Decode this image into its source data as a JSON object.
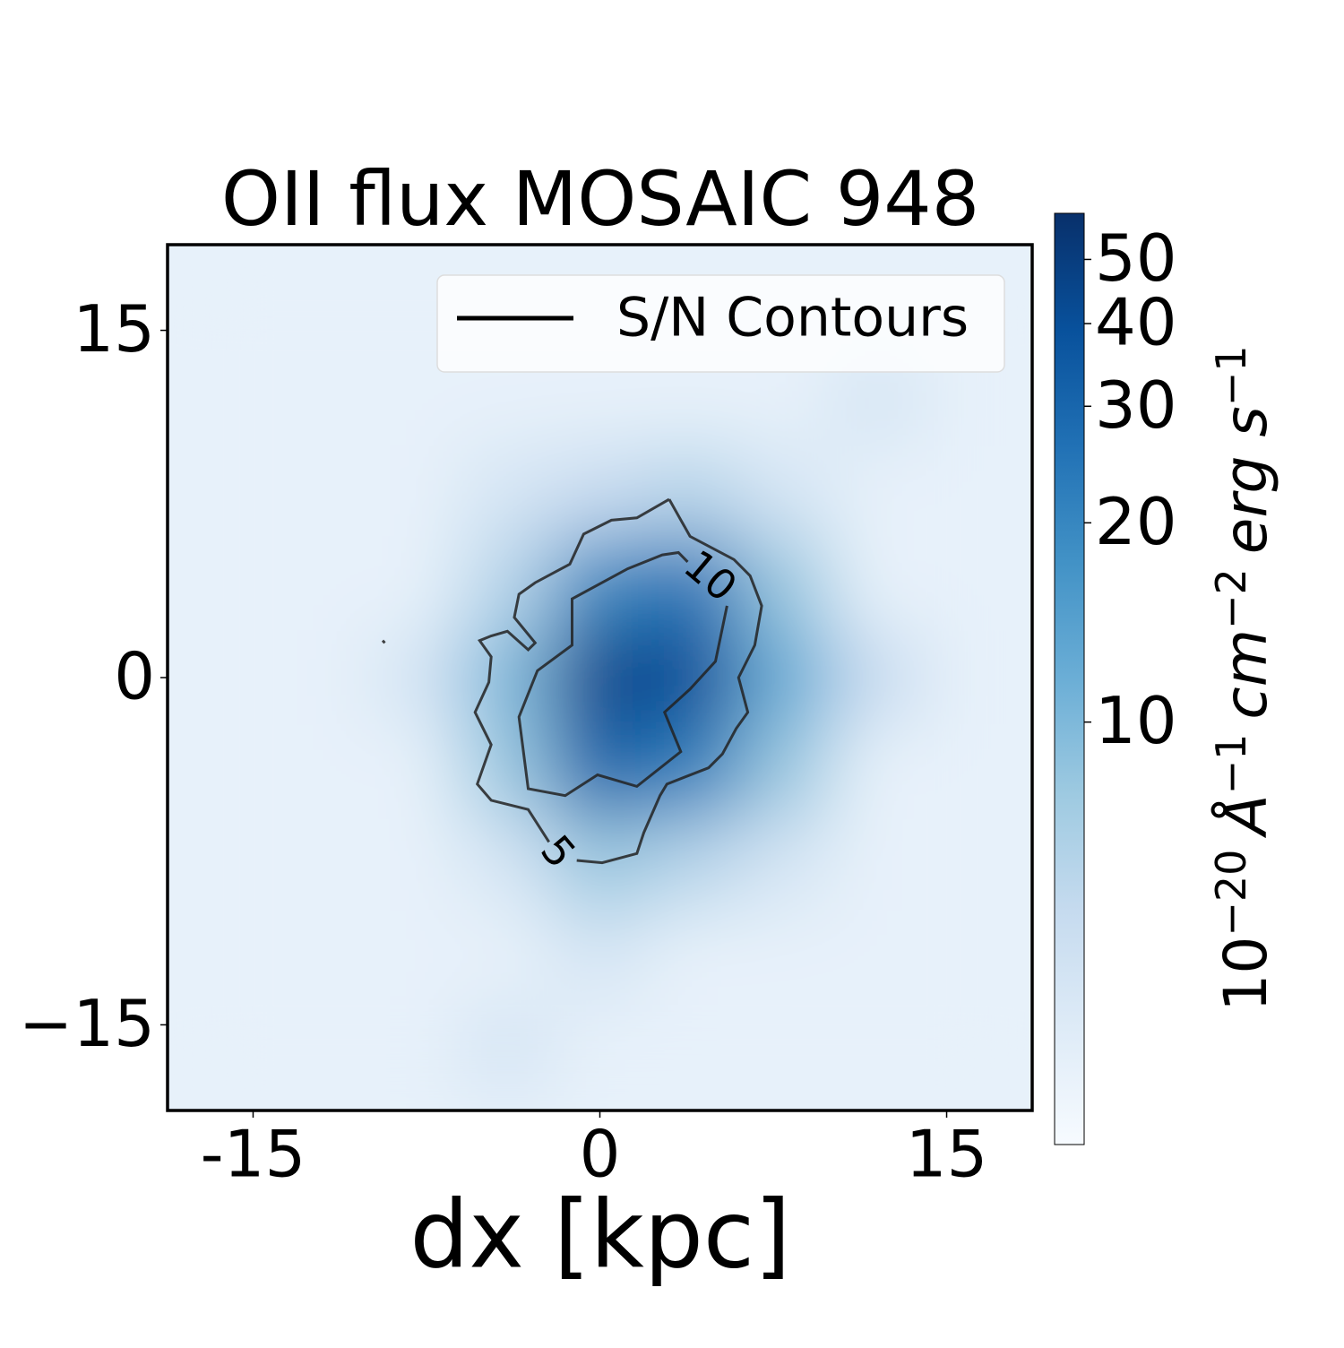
{
  "chart_data": {
    "type": "heatmap",
    "title": "OII flux MOSAIC 948",
    "x_label": "dx [kpc]",
    "x": [
      -16,
      -12,
      -8,
      -4,
      0,
      4,
      8,
      12,
      16
    ],
    "y": [
      16,
      12,
      8,
      4,
      0,
      -4,
      -8,
      -12,
      -16
    ],
    "z": [
      [
        3,
        3,
        3,
        3,
        3,
        3,
        3,
        3,
        3
      ],
      [
        3,
        3,
        3,
        3,
        3,
        3,
        3,
        4,
        3
      ],
      [
        3,
        3,
        3,
        4,
        5,
        6,
        4,
        3,
        3
      ],
      [
        3,
        3,
        3,
        6,
        20,
        25,
        8,
        3,
        3
      ],
      [
        3,
        3,
        4,
        10,
        45,
        40,
        12,
        5,
        3
      ],
      [
        3,
        3,
        3,
        8,
        30,
        22,
        8,
        3,
        3
      ],
      [
        3,
        3,
        3,
        4,
        8,
        6,
        4,
        3,
        3
      ],
      [
        3,
        3,
        3,
        3,
        4,
        3,
        3,
        3,
        3
      ],
      [
        3,
        3,
        3,
        4,
        3,
        3,
        3,
        3,
        3
      ]
    ],
    "xlim": [
      -18.7,
      18.7
    ],
    "ylim": [
      -18.7,
      18.7
    ],
    "xticks": [
      -15,
      0,
      15
    ],
    "yticks": [
      15,
      0,
      {
        "value": -15,
        "label": "−15"
      }
    ],
    "colormap": [
      "#f7fbff",
      "#deebf7",
      "#c6dbef",
      "#9ecae1",
      "#6baed6",
      "#4292c6",
      "#2171b5",
      "#08519c",
      "#08306b"
    ],
    "colorbar": {
      "log_scale": true,
      "lim": [
        2.3,
        58.7
      ],
      "ticks": [
        10,
        20,
        30,
        40,
        50
      ],
      "label": [
        {
          "text": "10",
          "sup": "−20"
        },
        {
          "text": "Å",
          "sup": "−1"
        },
        {
          "text": "cm",
          "sup": "−2"
        },
        {
          "text": "erg s",
          "sup": "−1"
        }
      ]
    },
    "contours": [
      {
        "level": 5,
        "color": "#222222",
        "x": [
          3.0,
          1.6,
          0.5,
          -0.7,
          -1.3,
          -2.8,
          -3.5,
          -3.7,
          -2.8,
          -3.1,
          -4.0,
          -4.7,
          -5.2,
          -4.7,
          -4.8,
          -5.4,
          -4.7,
          -5.3,
          -4.7,
          -3.1,
          -2.2,
          null,
          -1.0,
          0.1,
          1.6,
          1.9,
          2.6,
          2.9,
          4.7,
          5.3,
          5.9,
          6.4,
          6.0,
          6.7,
          7.0,
          6.5,
          5.8,
          3.9,
          3.0,
          null,
          -9.4,
          -9.3
        ],
        "y": [
          7.7,
          6.9,
          6.8,
          6.2,
          4.9,
          4.1,
          3.6,
          2.6,
          1.5,
          1.2,
          2.0,
          1.8,
          1.6,
          0.9,
          -0.2,
          -1.5,
          -2.9,
          -4.6,
          -5.3,
          -5.7,
          -7.1,
          null,
          -7.9,
          -8.0,
          -7.6,
          -6.7,
          -5.1,
          -4.6,
          -3.9,
          -3.3,
          -2.2,
          -1.5,
          0.0,
          1.4,
          3.1,
          4.4,
          5.1,
          6.1,
          7.7,
          null,
          1.6,
          1.5
        ]
      },
      {
        "level": 10,
        "color": "#222222",
        "x": [
          5.5,
          5.0,
          3.9,
          2.8,
          3.5,
          1.6,
          -0.1,
          -1.5,
          -3.1,
          -3.5,
          -2.7,
          -1.2,
          -1.2,
          1.2,
          2.7,
          3.4,
          3.8
        ],
        "y": [
          3.1,
          0.7,
          -0.5,
          -1.5,
          -3.2,
          -4.7,
          -4.2,
          -5.1,
          -4.8,
          -1.7,
          0.3,
          1.4,
          3.4,
          4.7,
          5.3,
          5.4,
          5.0
        ]
      }
    ],
    "legend": {
      "position": "upper right",
      "label": "S/N Contours",
      "color": "#000000"
    }
  }
}
